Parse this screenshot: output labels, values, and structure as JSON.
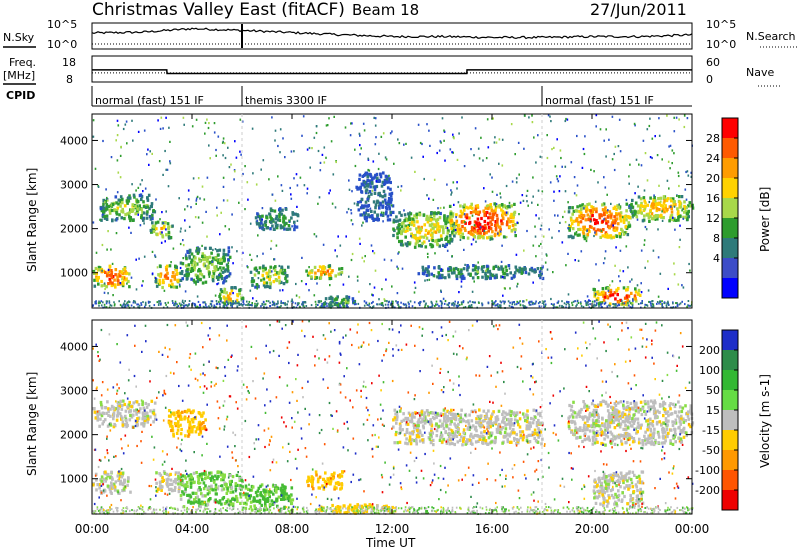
{
  "header": {
    "title": "Christmas Valley East (fitACF)",
    "beam": "Beam 18",
    "date": "27/Jun/2011"
  },
  "top_panels": {
    "nsky_label": "N.Sky",
    "nsearch_label": "N.Search",
    "noise_ticks": [
      "10^5",
      "10^0"
    ],
    "freq_label": "Freq.",
    "freq_unit": "[MHz]",
    "freq_ticks": [
      "18",
      "8"
    ],
    "nave_label": "Nave",
    "nave_ticks": [
      "60",
      "0"
    ],
    "cpid_label": "CPID",
    "cpid_segments": [
      {
        "label": "normal (fast) 151 IF",
        "start_hour": 0,
        "end_hour": 6
      },
      {
        "label": "themis 3300 IF",
        "start_hour": 6,
        "end_hour": 18
      },
      {
        "label": "normal (fast) 151 IF",
        "start_hour": 18,
        "end_hour": 24
      }
    ]
  },
  "power_panel": {
    "ylabel": "Slant Range [km]",
    "cbar_label": "Power [dB]",
    "cbar_ticks": [
      "28",
      "24",
      "20",
      "16",
      "12",
      "8",
      "4"
    ],
    "cbar_colors": [
      "#ff0000",
      "#ff5a00",
      "#ff9c00",
      "#ffd200",
      "#a8d84a",
      "#2e9c2e",
      "#2f7a7a",
      "#3c4cc8",
      "#0000ff"
    ]
  },
  "velocity_panel": {
    "ylabel": "Slant Range [km]",
    "cbar_label": "Velocity [m s-1]",
    "cbar_ticks": [
      "200",
      "100",
      "50",
      "15",
      "-15",
      "-50",
      "-100",
      "-200"
    ],
    "cbar_colors": [
      "#1e2ec8",
      "#2e8c4a",
      "#33b833",
      "#66dd44",
      "#bebebe",
      "#ffcc00",
      "#ff9900",
      "#ff5500",
      "#ee0000"
    ]
  },
  "axes": {
    "yticks": [
      "4000",
      "3000",
      "2000",
      "1000"
    ],
    "xticks": [
      "00:00",
      "04:00",
      "08:00",
      "12:00",
      "16:00",
      "20:00",
      "00:00"
    ],
    "xlabel": "Time UT"
  },
  "chart_data": [
    {
      "type": "heatmap",
      "title": "Christmas Valley East (fitACF) Beam 18 27/Jun/2011",
      "xlabel": "Time UT",
      "ylabel": "Slant Range [km]",
      "xlim_hours": [
        0,
        24
      ],
      "ylim": [
        200,
        4600
      ],
      "quantity": "Power [dB]",
      "colorbar": [
        4,
        8,
        12,
        16,
        20,
        24,
        28
      ],
      "echo_regions": [
        {
          "t0": 0.0,
          "t1": 1.5,
          "r0": 700,
          "r1": 1200,
          "level": 26
        },
        {
          "t0": 0.3,
          "t1": 2.5,
          "r0": 2200,
          "r1": 2800,
          "level": 14
        },
        {
          "t0": 2.3,
          "t1": 3.2,
          "r0": 1800,
          "r1": 2200,
          "level": 18
        },
        {
          "t0": 2.5,
          "t1": 3.5,
          "r0": 700,
          "r1": 1200,
          "level": 24
        },
        {
          "t0": 3.5,
          "t1": 5.5,
          "r0": 800,
          "r1": 1600,
          "level": 14
        },
        {
          "t0": 5.0,
          "t1": 6.0,
          "r0": 300,
          "r1": 700,
          "level": 20
        },
        {
          "t0": 6.3,
          "t1": 7.8,
          "r0": 700,
          "r1": 1200,
          "level": 16
        },
        {
          "t0": 6.5,
          "t1": 8.2,
          "r0": 2000,
          "r1": 2500,
          "level": 10
        },
        {
          "t0": 8.5,
          "t1": 10.0,
          "r0": 900,
          "r1": 1200,
          "level": 22
        },
        {
          "t0": 9.0,
          "t1": 10.5,
          "r0": 250,
          "r1": 500,
          "level": 12
        },
        {
          "t0": 10.5,
          "t1": 12.0,
          "r0": 2200,
          "r1": 3300,
          "level": 6
        },
        {
          "t0": 12.0,
          "t1": 14.5,
          "r0": 1600,
          "r1": 2400,
          "level": 18
        },
        {
          "t0": 14.2,
          "t1": 17.0,
          "r0": 1800,
          "r1": 2600,
          "level": 28
        },
        {
          "t0": 13.0,
          "t1": 18.0,
          "r0": 900,
          "r1": 1200,
          "level": 10
        },
        {
          "t0": 19.0,
          "t1": 21.5,
          "r0": 1800,
          "r1": 2600,
          "level": 26
        },
        {
          "t0": 20.0,
          "t1": 22.0,
          "r0": 300,
          "r1": 700,
          "level": 28
        },
        {
          "t0": 21.5,
          "t1": 24.0,
          "r0": 2200,
          "r1": 2800,
          "level": 20
        }
      ]
    },
    {
      "type": "heatmap",
      "xlabel": "Time UT",
      "ylabel": "Slant Range [km]",
      "xlim_hours": [
        0,
        24
      ],
      "ylim": [
        200,
        4600
      ],
      "quantity": "Velocity [m s-1]",
      "colorbar": [
        -200,
        -100,
        -50,
        -15,
        15,
        50,
        100,
        200
      ],
      "echo_regions": [
        {
          "t0": 0.0,
          "t1": 2.5,
          "r0": 2200,
          "r1": 2800,
          "level": 0
        },
        {
          "t0": 0.0,
          "t1": 1.5,
          "r0": 700,
          "r1": 1200,
          "level": 0
        },
        {
          "t0": 2.5,
          "t1": 3.5,
          "r0": 700,
          "r1": 1200,
          "level": 0
        },
        {
          "t0": 3.0,
          "t1": 4.5,
          "r0": 2000,
          "r1": 2600,
          "level": -40
        },
        {
          "t0": 3.5,
          "t1": 6.0,
          "r0": 400,
          "r1": 1200,
          "level": 30
        },
        {
          "t0": 6.0,
          "t1": 8.0,
          "r0": 300,
          "r1": 900,
          "level": 40
        },
        {
          "t0": 8.5,
          "t1": 10.0,
          "r0": 800,
          "r1": 1200,
          "level": -40
        },
        {
          "t0": 9.0,
          "t1": 12.0,
          "r0": 250,
          "r1": 450,
          "level": -30
        },
        {
          "t0": 12.0,
          "t1": 18.0,
          "r0": 1800,
          "r1": 2600,
          "level": 0
        },
        {
          "t0": 19.0,
          "t1": 24.0,
          "r0": 1800,
          "r1": 2800,
          "level": 0
        },
        {
          "t0": 20.0,
          "t1": 22.0,
          "r0": 400,
          "r1": 1200,
          "level": 0
        }
      ]
    },
    {
      "type": "line",
      "series": [
        {
          "name": "N.Sky",
          "x_hours": [
            0,
            2,
            4,
            6,
            8,
            10,
            12,
            14,
            16,
            18,
            20,
            22,
            24
          ],
          "values_log10": [
            3.4,
            3.6,
            4.4,
            4.0,
            3.5,
            3.0,
            2.6,
            2.6,
            2.4,
            2.4,
            2.6,
            2.6,
            3.0
          ]
        },
        {
          "name": "Freq.",
          "x_hours": [
            0,
            2.99,
            3.0,
            14.99,
            15.0,
            24
          ],
          "values": [
            12.5,
            12.5,
            10.5,
            10.5,
            12.5,
            12.5
          ]
        },
        {
          "name": "Nave",
          "x_hours": [
            0,
            6,
            18,
            24
          ],
          "values": [
            22,
            22,
            22,
            22
          ]
        }
      ]
    }
  ]
}
